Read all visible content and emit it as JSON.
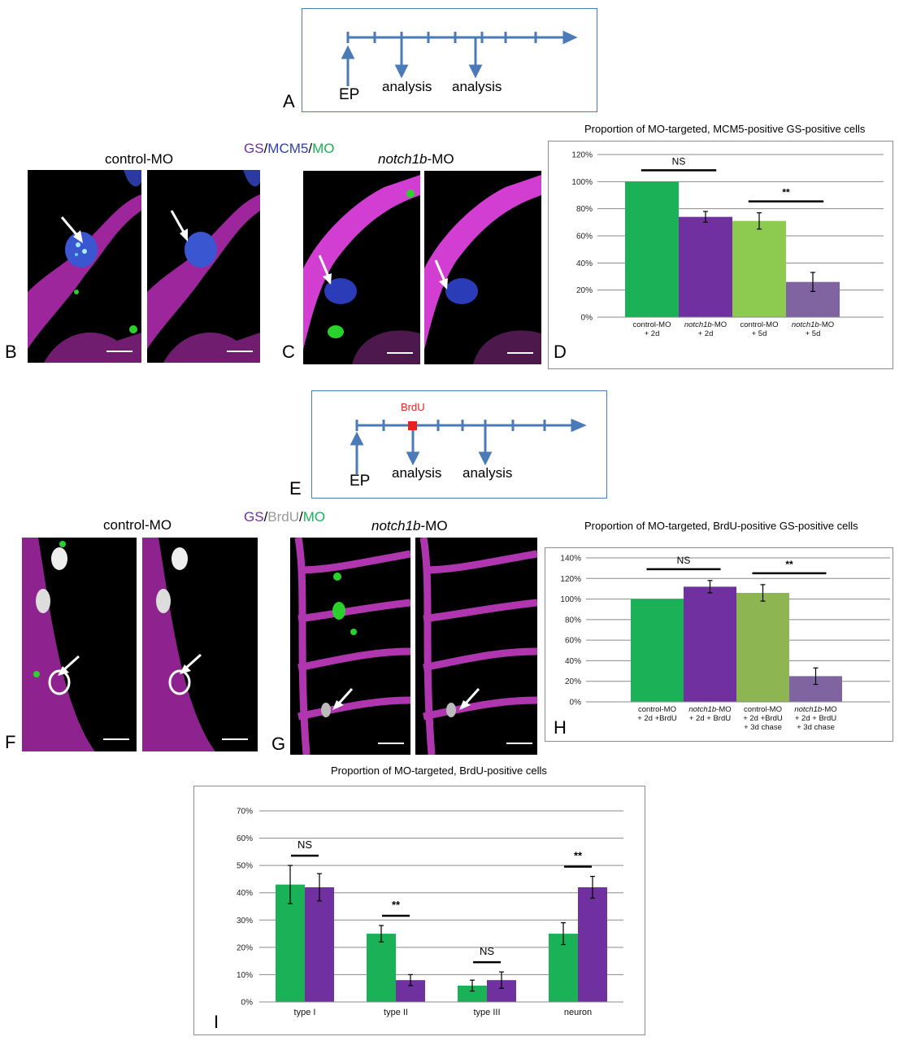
{
  "colors": {
    "blue": "#4a7ab8",
    "green": "#1bb157",
    "purple": "#7030a0",
    "lightgreen": "#8ccb50",
    "olivegreen": "#8db551",
    "lightpurple": "#8064a2",
    "magenta": "#d62ad6",
    "red": "#e8221e"
  },
  "panel_letters": {
    "A": "A",
    "B": "B",
    "C": "C",
    "D": "D",
    "E": "E",
    "F": "F",
    "G": "G",
    "H": "H",
    "I": "I"
  },
  "timeline_A": {
    "ep": "EP",
    "analysis1": "analysis",
    "analysis2": "analysis"
  },
  "timeline_E": {
    "ep": "EP",
    "analysis1": "analysis",
    "analysis2": "analysis",
    "marker": "BrdU"
  },
  "labels_top": {
    "control": "control-MO",
    "stain_gs": "GS",
    "stain_mcm5": "MCM5",
    "stain_mo": "MO",
    "slash": "/",
    "notch_italic": "notch1b",
    "notch_suffix": "-MO"
  },
  "labels_mid": {
    "control": "control-MO",
    "stain_gs": "GS",
    "stain_brdu": "BrdU",
    "stain_mo": "MO",
    "slash": "/",
    "notch_italic": "notch1b",
    "notch_suffix": "-MO"
  },
  "chart_data": [
    {
      "panel": "D",
      "type": "bar",
      "title": "Proportion of MO-targeted, MCM5-positive GS-positive cells",
      "ylim": [
        0,
        120
      ],
      "yticks": [
        "0%",
        "20%",
        "40%",
        "60%",
        "80%",
        "100%",
        "120%"
      ],
      "grid": true,
      "categories": [
        [
          "control-MO",
          "+ 2d"
        ],
        [
          "notch1b-MO",
          "+ 2d"
        ],
        [
          "control-MO",
          "+ 5d"
        ],
        [
          "notch1b-MO",
          "+ 5d"
        ]
      ],
      "values": [
        100,
        74,
        71,
        26
      ],
      "errors": [
        0,
        4,
        6,
        7
      ],
      "colors": [
        "#1bb157",
        "#7030a0",
        "#8ccb50",
        "#8064a2"
      ],
      "annotations": [
        {
          "text": "NS",
          "between": [
            0,
            1
          ]
        },
        {
          "text": "**",
          "between": [
            2,
            3
          ]
        }
      ]
    },
    {
      "panel": "H",
      "type": "bar",
      "title": "Proportion of MO-targeted, BrdU-positive GS-positive cells",
      "ylim": [
        0,
        140
      ],
      "yticks": [
        "0%",
        "20%",
        "40%",
        "60%",
        "80%",
        "100%",
        "120%",
        "140%"
      ],
      "grid": true,
      "categories": [
        [
          "control-MO",
          "+ 2d +BrdU"
        ],
        [
          "notch1b-MO",
          "+ 2d + BrdU"
        ],
        [
          "control-MO",
          "+ 2d +BrdU",
          "+ 3d chase"
        ],
        [
          "notch1b-MO",
          "+ 2d + BrdU",
          "+ 3d chase"
        ]
      ],
      "values": [
        100,
        112,
        106,
        25
      ],
      "errors": [
        0,
        6,
        8,
        8
      ],
      "colors": [
        "#1bb157",
        "#7030a0",
        "#8db551",
        "#8064a2"
      ],
      "annotations": [
        {
          "text": "NS",
          "between": [
            0,
            1
          ]
        },
        {
          "text": "**",
          "between": [
            2,
            3
          ]
        }
      ]
    },
    {
      "panel": "I",
      "type": "bar",
      "title": "Proportion of MO-targeted,  BrdU-positive cells",
      "ylim": [
        0,
        70
      ],
      "yticks": [
        "0%",
        "10%",
        "20%",
        "30%",
        "40%",
        "50%",
        "60%",
        "70%"
      ],
      "grid": true,
      "categories": [
        "type I",
        "type II",
        "type III",
        "neuron"
      ],
      "series": [
        {
          "values": [
            43,
            25,
            6,
            25
          ],
          "errors": [
            7,
            3,
            2,
            4
          ],
          "color": "#1bb157"
        },
        {
          "values": [
            42,
            8,
            8,
            42
          ],
          "errors": [
            5,
            2,
            3,
            4
          ],
          "color": "#7030a0"
        }
      ],
      "annotations": [
        {
          "text": "NS",
          "group": 0
        },
        {
          "text": "**",
          "group": 1
        },
        {
          "text": "NS",
          "group": 2
        },
        {
          "text": "**",
          "group": 3
        }
      ]
    }
  ]
}
